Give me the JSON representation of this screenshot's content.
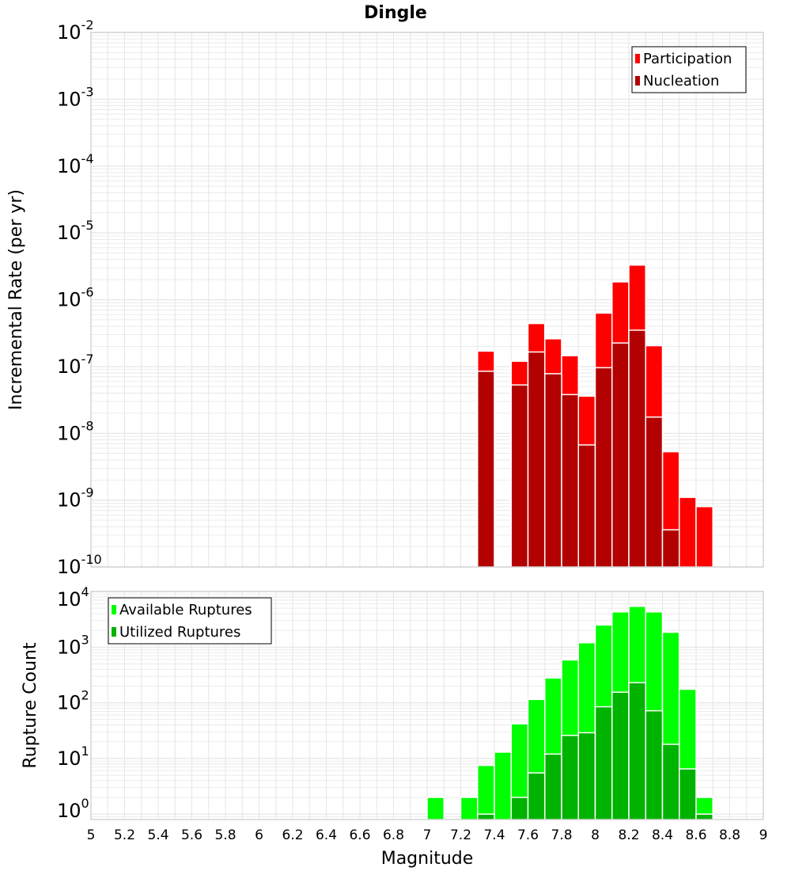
{
  "chart_data": [
    {
      "type": "bar",
      "title": "Dingle",
      "ylabel": "Incremental Rate (per yr)",
      "xlabel": "",
      "xlim": [
        5,
        9
      ],
      "ylim": [
        1e-10,
        0.01
      ],
      "yscale": "log",
      "bin_width": 0.1,
      "grid": true,
      "legend_position": "top-right",
      "x": [
        7.35,
        7.45,
        7.55,
        7.65,
        7.75,
        7.85,
        7.95,
        8.05,
        8.15,
        8.25,
        8.35,
        8.45,
        8.55,
        8.65
      ],
      "series": [
        {
          "name": "Participation",
          "color": "#ff0000",
          "values": [
            1.7e-07,
            null,
            1.2e-07,
            4.4e-07,
            2.6e-07,
            1.45e-07,
            3.6e-08,
            6.3e-07,
            1.85e-06,
            3.3e-06,
            2.05e-07,
            5.3e-09,
            1.1e-09,
            8e-10
          ]
        },
        {
          "name": "Nucleation",
          "color": "#b30000",
          "values": [
            8.5e-08,
            null,
            5.3e-08,
            1.65e-07,
            7.8e-08,
            3.8e-08,
            6.7e-09,
            9.6e-08,
            2.25e-07,
            3.5e-07,
            1.75e-08,
            3.6e-10,
            null,
            null
          ]
        }
      ]
    },
    {
      "type": "bar",
      "title": "",
      "ylabel": "Rupture Count",
      "xlabel": "Magnitude",
      "xlim": [
        5,
        9
      ],
      "ylim": [
        0.8,
        10000
      ],
      "yscale": "log",
      "bin_width": 0.1,
      "grid": true,
      "legend_position": "top-left",
      "x": [
        7.05,
        7.25,
        7.35,
        7.45,
        7.55,
        7.65,
        7.75,
        7.85,
        7.95,
        8.05,
        8.15,
        8.25,
        8.35,
        8.45,
        8.55,
        8.65
      ],
      "series": [
        {
          "name": "Available Ruptures",
          "color": "#00ff00",
          "values": [
            2,
            2,
            7.5,
            13,
            42,
            115,
            280,
            590,
            1200,
            2500,
            4300,
            5400,
            4300,
            1850,
            175,
            2
          ]
        },
        {
          "name": "Utilized Ruptures",
          "color": "#00b300",
          "values": [
            null,
            null,
            1,
            null,
            2,
            5.5,
            12,
            26,
            29,
            85,
            155,
            230,
            72,
            18,
            6.5,
            1
          ]
        }
      ]
    }
  ],
  "axes": {
    "x_ticks": [
      "5",
      "5.2",
      "5.4",
      "5.6",
      "5.8",
      "6",
      "6.2",
      "6.4",
      "6.6",
      "6.8",
      "7",
      "7.2",
      "7.4",
      "7.6",
      "7.8",
      "8",
      "8.2",
      "8.4",
      "8.6",
      "8.8",
      "9"
    ],
    "top_y_ticks": [
      {
        "base": "10",
        "exp": "-2"
      },
      {
        "base": "10",
        "exp": "-3"
      },
      {
        "base": "10",
        "exp": "-4"
      },
      {
        "base": "10",
        "exp": "-5"
      },
      {
        "base": "10",
        "exp": "-6"
      },
      {
        "base": "10",
        "exp": "-7"
      },
      {
        "base": "10",
        "exp": "-8"
      },
      {
        "base": "10",
        "exp": "-9"
      },
      {
        "base": "10",
        "exp": "-10"
      }
    ],
    "bottom_y_ticks": [
      {
        "base": "10",
        "exp": "4"
      },
      {
        "base": "10",
        "exp": "3"
      },
      {
        "base": "10",
        "exp": "2"
      },
      {
        "base": "10",
        "exp": "1"
      },
      {
        "base": "10",
        "exp": "0"
      }
    ]
  },
  "colors": {
    "grid": "#e6e6e6",
    "plot_border": "#bfbfbf",
    "bar_outline": "#ffffff",
    "legend_border": "#000000"
  }
}
